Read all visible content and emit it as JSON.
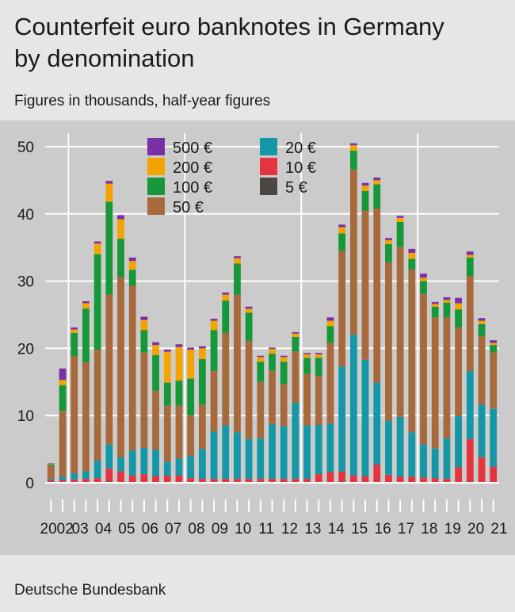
{
  "header": {
    "title_line1": "Counterfeit euro banknotes in Germany",
    "title_line2": "by denomination",
    "subtitle": "Figures in thousands, half-year figures"
  },
  "footer": {
    "source": "Deutsche Bundesbank"
  },
  "colors": {
    "500": "#7b2fa6",
    "200": "#f3a400",
    "100": "#16973a",
    "50": "#a86a3c",
    "20": "#1497a6",
    "10": "#e4343f",
    "5": "#4b4642"
  },
  "chart_data": {
    "type": "bar",
    "stacked": true,
    "ylim": [
      0,
      52
    ],
    "yticks": [
      0,
      10,
      20,
      30,
      40,
      50
    ],
    "year_labels": [
      "2002",
      "03",
      "04",
      "05",
      "06",
      "07",
      "08",
      "09",
      "10",
      "11",
      "12",
      "13",
      "14",
      "15",
      "16",
      "17",
      "18",
      "19",
      "20",
      "21"
    ],
    "legend": [
      {
        "key": "500",
        "label": "500 €"
      },
      {
        "key": "200",
        "label": "200 €"
      },
      {
        "key": "100",
        "label": "100 €"
      },
      {
        "key": "50",
        "label": "50 €"
      },
      {
        "key": "20",
        "label": "20 €"
      },
      {
        "key": "10",
        "label": "10 €"
      },
      {
        "key": "5",
        "label": "5 €"
      }
    ],
    "series_order": [
      "5",
      "10",
      "20",
      "50",
      "100",
      "200",
      "500"
    ],
    "bars": [
      {
        "period": "2002 H1",
        "5": 0.1,
        "10": 0.3,
        "20": 0.2,
        "50": 1.9,
        "100": 0.2,
        "200": 0.1,
        "500": 0.1
      },
      {
        "period": "2002 H2",
        "5": 0.1,
        "10": 0.3,
        "20": 0.5,
        "50": 9.8,
        "100": 3.8,
        "200": 0.8,
        "500": 1.7
      },
      {
        "period": "2003 H1",
        "5": 0.1,
        "10": 0.4,
        "20": 0.9,
        "50": 17.4,
        "100": 3.5,
        "200": 0.5,
        "500": 0.3
      },
      {
        "period": "2003 H2",
        "5": 0.1,
        "10": 0.5,
        "20": 1.1,
        "50": 16.2,
        "100": 8.0,
        "200": 0.8,
        "500": 0.3
      },
      {
        "period": "2004 H1",
        "5": 0.1,
        "10": 0.6,
        "20": 2.6,
        "50": 16.5,
        "100": 14.2,
        "200": 1.6,
        "500": 0.3
      },
      {
        "period": "2004 H2",
        "5": 0.2,
        "10": 1.9,
        "20": 3.6,
        "50": 22.3,
        "100": 13.8,
        "200": 2.7,
        "500": 0.4
      },
      {
        "period": "2005 H1",
        "5": 0.1,
        "10": 1.6,
        "20": 2.1,
        "50": 26.8,
        "100": 5.7,
        "200": 2.9,
        "500": 0.6
      },
      {
        "period": "2005 H2",
        "5": 0.1,
        "10": 1.0,
        "20": 3.7,
        "50": 24.5,
        "100": 2.4,
        "200": 1.3,
        "500": 0.5
      },
      {
        "period": "2006 H1",
        "5": 0.1,
        "10": 1.2,
        "20": 3.9,
        "50": 14.2,
        "100": 3.3,
        "200": 1.5,
        "500": 0.5
      },
      {
        "period": "2006 H2",
        "5": 0.1,
        "10": 0.9,
        "20": 3.9,
        "50": 8.8,
        "100": 5.3,
        "200": 1.5,
        "500": 0.4
      },
      {
        "period": "2007 H1",
        "5": 0.1,
        "10": 1.0,
        "20": 2.0,
        "50": 8.4,
        "100": 3.4,
        "200": 4.6,
        "500": 0.3
      },
      {
        "period": "2007 H2",
        "5": 0.1,
        "10": 1.0,
        "20": 2.5,
        "50": 7.9,
        "100": 3.7,
        "200": 5.0,
        "500": 0.4
      },
      {
        "period": "2008 H1",
        "5": 0.1,
        "10": 0.6,
        "20": 3.3,
        "50": 6.0,
        "100": 5.5,
        "200": 4.3,
        "500": 0.3
      },
      {
        "period": "2008 H2",
        "5": 0.1,
        "10": 0.5,
        "20": 4.4,
        "50": 6.6,
        "100": 6.8,
        "200": 1.6,
        "500": 0.3
      },
      {
        "period": "2009 H1",
        "5": 0.1,
        "10": 0.5,
        "20": 7.0,
        "50": 9.0,
        "100": 6.1,
        "200": 1.4,
        "500": 0.3
      },
      {
        "period": "2009 H2",
        "5": 0.1,
        "10": 0.5,
        "20": 7.9,
        "50": 13.8,
        "100": 4.8,
        "200": 0.9,
        "500": 0.3
      },
      {
        "period": "2010 H1",
        "5": 0.1,
        "10": 0.5,
        "20": 6.9,
        "50": 20.5,
        "100": 4.6,
        "200": 0.8,
        "500": 0.3
      },
      {
        "period": "2010 H2",
        "5": 0.1,
        "10": 0.5,
        "20": 5.9,
        "50": 14.6,
        "100": 4.2,
        "200": 0.6,
        "500": 0.3
      },
      {
        "period": "2011 H1",
        "5": 0.1,
        "10": 0.5,
        "20": 6.0,
        "50": 8.4,
        "100": 3.0,
        "200": 0.7,
        "500": 0.2
      },
      {
        "period": "2011 H2",
        "5": 0.1,
        "10": 0.5,
        "20": 8.1,
        "50": 8.0,
        "100": 2.5,
        "200": 0.7,
        "500": 0.2
      },
      {
        "period": "2012 H1",
        "5": 0.1,
        "10": 0.5,
        "20": 7.8,
        "50": 6.3,
        "100": 3.3,
        "200": 0.7,
        "500": 0.2
      },
      {
        "period": "2012 H2",
        "5": 0.1,
        "10": 0.5,
        "20": 11.3,
        "50": 7.6,
        "100": 2.2,
        "200": 0.5,
        "500": 0.2
      },
      {
        "period": "2013 H1",
        "5": 0.1,
        "10": 0.5,
        "20": 7.9,
        "50": 7.7,
        "100": 2.4,
        "200": 0.5,
        "500": 0.2
      },
      {
        "period": "2013 H2",
        "5": 0.1,
        "10": 1.2,
        "20": 7.3,
        "50": 7.3,
        "100": 2.7,
        "200": 0.5,
        "500": 0.2
      },
      {
        "period": "2014 H1",
        "5": 0.1,
        "10": 1.5,
        "20": 7.2,
        "50": 12.0,
        "100": 2.5,
        "200": 0.8,
        "500": 0.5
      },
      {
        "period": "2014 H2",
        "5": 0.2,
        "10": 1.5,
        "20": 15.6,
        "50": 17.2,
        "100": 2.6,
        "200": 0.9,
        "500": 0.4
      },
      {
        "period": "2015 H1",
        "5": 0.1,
        "10": 1.0,
        "20": 20.9,
        "50": 24.6,
        "100": 2.8,
        "200": 0.8,
        "500": 0.3
      },
      {
        "period": "2015 H2",
        "5": 0.1,
        "10": 0.9,
        "20": 17.3,
        "50": 22.2,
        "100": 2.9,
        "200": 0.8,
        "500": 0.4
      },
      {
        "period": "2016 H1",
        "5": 0.1,
        "10": 2.6,
        "20": 12.2,
        "50": 25.9,
        "100": 3.6,
        "200": 0.6,
        "500": 0.4
      },
      {
        "period": "2016 H2",
        "5": 0.1,
        "10": 1.1,
        "20": 8.0,
        "50": 23.6,
        "100": 2.7,
        "200": 0.6,
        "500": 0.3
      },
      {
        "period": "2017 H1",
        "5": 0.1,
        "10": 0.8,
        "20": 8.9,
        "50": 25.3,
        "100": 3.7,
        "200": 0.6,
        "500": 0.3
      },
      {
        "period": "2017 H2",
        "5": 0.1,
        "10": 0.8,
        "20": 6.6,
        "50": 24.2,
        "100": 1.6,
        "200": 0.9,
        "500": 0.6
      },
      {
        "period": "2018 H1",
        "5": 0.1,
        "10": 0.7,
        "20": 4.9,
        "50": 22.4,
        "100": 1.9,
        "200": 0.5,
        "500": 0.6
      },
      {
        "period": "2018 H2",
        "5": 0.1,
        "10": 0.6,
        "20": 4.4,
        "50": 19.5,
        "100": 1.6,
        "200": 0.4,
        "500": 0.3
      },
      {
        "period": "2019 H1",
        "5": 0.1,
        "10": 0.5,
        "20": 6.0,
        "50": 18.0,
        "100": 2.2,
        "200": 0.4,
        "500": 0.4
      },
      {
        "period": "2019 H2",
        "5": 0.1,
        "10": 2.2,
        "20": 7.6,
        "50": 13.2,
        "100": 2.7,
        "200": 0.9,
        "500": 0.8
      },
      {
        "period": "2020 H1",
        "5": 0.2,
        "10": 6.3,
        "20": 10.1,
        "50": 14.1,
        "100": 2.8,
        "200": 0.4,
        "500": 0.5
      },
      {
        "period": "2020 H2",
        "5": 0.1,
        "10": 3.7,
        "20": 7.8,
        "50": 10.2,
        "100": 1.8,
        "200": 0.5,
        "500": 0.4
      },
      {
        "period": "2021 H1",
        "5": 0.1,
        "10": 2.3,
        "20": 8.6,
        "50": 8.4,
        "100": 1.1,
        "200": 0.3,
        "500": 0.4
      }
    ]
  }
}
